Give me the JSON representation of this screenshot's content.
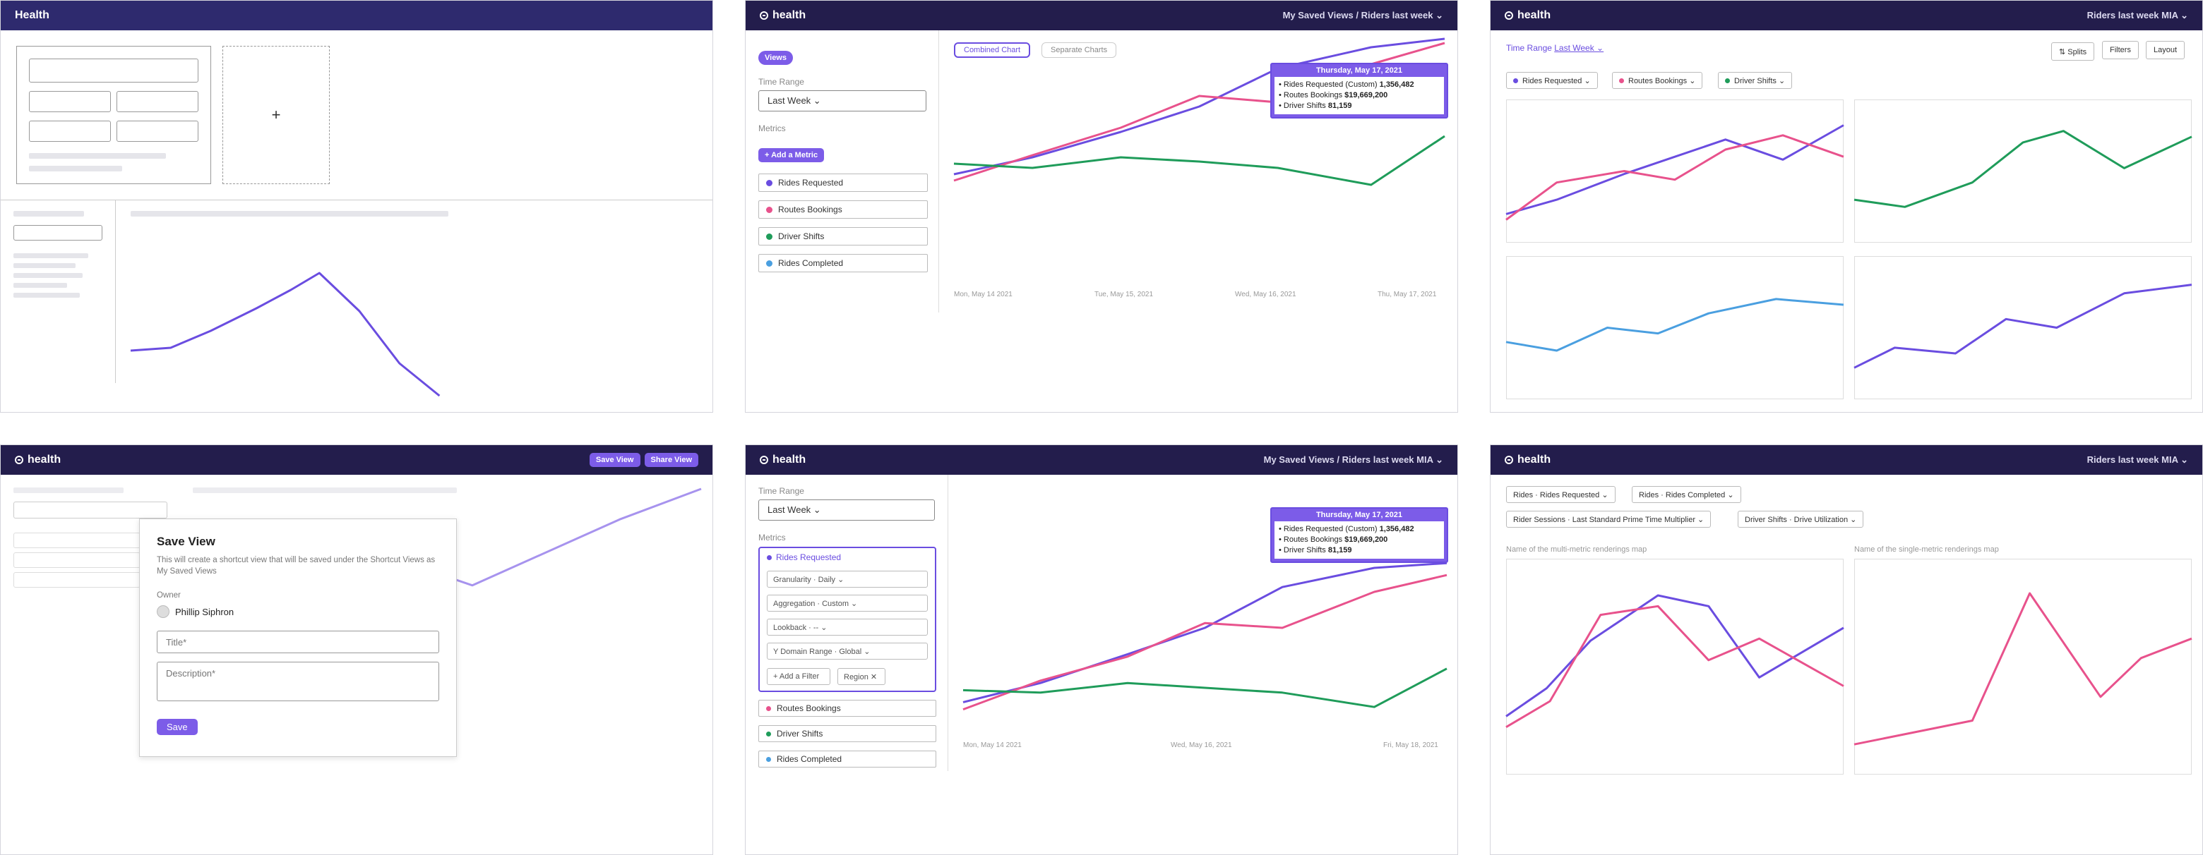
{
  "colors": {
    "header": "#231d4c",
    "accent": "#7c5ce8",
    "purple_series": "#6a4de0",
    "pink_series": "#e8528c",
    "green_series": "#1f9c5a",
    "blue_series": "#4a9fe0"
  },
  "panel1": {
    "title": "Health",
    "plus_icon": "+",
    "wireframe_line": [
      0.12,
      0.17,
      0.38,
      0.62,
      0.9,
      0.55,
      0.08,
      -0.22
    ]
  },
  "panel2": {
    "brand": "health",
    "breadcrumb": "My Saved Views / Riders last week ⌄",
    "views_button": "Views",
    "time_range_label": "Time Range",
    "time_range_value": "Last Week ⌄",
    "metrics_label": "Metrics",
    "add_metric": "+ Add a Metric",
    "metrics": [
      "Rides Requested",
      "Routes Bookings",
      "Driver Shifts",
      "Rides Completed"
    ],
    "tabs": [
      "Combined Chart",
      "Separate Charts"
    ],
    "tooltip": {
      "title": "Thursday, May 17, 2021",
      "rows": [
        {
          "label": "• Rides Requested (Custom) ",
          "value": "1,356,482"
        },
        {
          "label": "• Routes Bookings ",
          "value": "$19,669,200"
        },
        {
          "label": "• Driver Shifts ",
          "value": "81,159"
        }
      ]
    },
    "x_ticks": [
      "Mon, May 14 2021",
      "Tue, May 15, 2021",
      "Wed, May 16, 2021",
      "Thu, May 17, 2021"
    ]
  },
  "panel3": {
    "brand": "health",
    "title": "Riders last week MIA ⌄",
    "time_range_label": "Time Range ",
    "time_range_value": "Last Week ⌄",
    "buttons": [
      "⇅ Splits",
      "Filters",
      "Layout"
    ],
    "chips": [
      "Rides Requested ⌄",
      "Routes Bookings ⌄",
      "Driver Shifts ⌄"
    ]
  },
  "panel4": {
    "brand": "health",
    "save_view": "Save View",
    "share_view": "Share View",
    "modal": {
      "title": "Save View",
      "description": "This will create a shortcut view that will be saved under the Shortcut Views as My Saved Views",
      "owner_label": "Owner",
      "owner_name": "Phillip Siphron",
      "title_placeholder": "Title*",
      "description_placeholder": "Description*",
      "save_button": "Save"
    }
  },
  "panel5": {
    "brand": "health",
    "breadcrumb": "My Saved Views / Riders last week MIA ⌄",
    "time_range_label": "Time Range",
    "time_range_value": "Last Week ⌄",
    "metrics_label": "Metrics",
    "expanded_metric": "Rides Requested",
    "sub_options": [
      "Granularity · Daily ⌄",
      "Aggregation · Custom ⌄",
      "Lookback · -- ⌄",
      "Y Domain Range · Global ⌄"
    ],
    "add_filter": "+ Add a Filter",
    "region_chip": "Region ✕",
    "other_metrics": [
      "Routes Bookings",
      "Driver Shifts",
      "Rides Completed"
    ],
    "tooltip": {
      "title": "Thursday, May 17, 2021",
      "rows": [
        {
          "label": "• Rides Requested (Custom) ",
          "value": "1,356,482"
        },
        {
          "label": "• Routes Bookings ",
          "value": "$19,669,200"
        },
        {
          "label": "• Driver Shifts ",
          "value": "81,159"
        }
      ]
    },
    "x_ticks": [
      "Mon, May 14 2021",
      "Wed, May 16, 2021",
      "Fri, May 18, 2021"
    ]
  },
  "panel6": {
    "brand": "health",
    "title": "Riders last week MIA ⌄",
    "chips_row1": [
      "Rides · Rides Requested ⌄",
      "Rides · Rides Completed ⌄"
    ],
    "chips_row2": [
      "Rider Sessions · Last Standard Prime Time Multiplier ⌄",
      "Driver Shifts · Drive Utilization ⌄"
    ],
    "caption_left": "Name of the multi-metric renderings map",
    "caption_right": "Name of the single-metric renderings map"
  }
}
